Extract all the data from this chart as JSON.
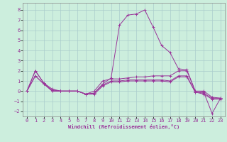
{
  "title": "",
  "xlabel": "Windchill (Refroidissement éolien,°C)",
  "ylabel": "",
  "background_color": "#cceedd",
  "grid_color": "#aacccc",
  "line_color": "#993399",
  "xlim": [
    -0.5,
    23.5
  ],
  "ylim": [
    -2.5,
    8.7
  ],
  "yticks": [
    -2,
    -1,
    0,
    1,
    2,
    3,
    4,
    5,
    6,
    7,
    8
  ],
  "xticks": [
    0,
    1,
    2,
    3,
    4,
    5,
    6,
    7,
    8,
    9,
    10,
    11,
    12,
    13,
    14,
    15,
    16,
    17,
    18,
    19,
    20,
    21,
    22,
    23
  ],
  "lines": [
    {
      "x": [
        0,
        1,
        2,
        3,
        4,
        5,
        6,
        7,
        8,
        9,
        10,
        11,
        12,
        13,
        14,
        15,
        16,
        17,
        18,
        19,
        20,
        21,
        22,
        23
      ],
      "y": [
        0.0,
        2.0,
        0.8,
        0.0,
        0.0,
        0.0,
        0.0,
        -0.3,
        -0.2,
        0.7,
        1.3,
        6.5,
        7.5,
        7.6,
        8.0,
        6.3,
        4.5,
        3.8,
        2.2,
        2.1,
        0.0,
        -0.1,
        -2.2,
        -0.7
      ]
    },
    {
      "x": [
        0,
        1,
        2,
        3,
        4,
        5,
        6,
        7,
        8,
        9,
        10,
        11,
        12,
        13,
        14,
        15,
        16,
        17,
        18,
        19,
        20,
        21,
        22,
        23
      ],
      "y": [
        0.0,
        2.0,
        0.8,
        0.2,
        0.0,
        0.0,
        0.0,
        -0.3,
        0.0,
        1.0,
        1.2,
        1.2,
        1.3,
        1.4,
        1.4,
        1.5,
        1.5,
        1.5,
        2.0,
        2.0,
        0.0,
        0.0,
        -0.6,
        -0.7
      ]
    },
    {
      "x": [
        0,
        1,
        2,
        3,
        4,
        5,
        6,
        7,
        8,
        9,
        10,
        11,
        12,
        13,
        14,
        15,
        16,
        17,
        18,
        19,
        20,
        21,
        22,
        23
      ],
      "y": [
        0.0,
        1.5,
        0.7,
        0.1,
        0.0,
        0.0,
        0.0,
        -0.3,
        -0.2,
        0.6,
        1.0,
        1.0,
        1.1,
        1.1,
        1.1,
        1.1,
        1.1,
        1.0,
        1.5,
        1.5,
        -0.1,
        -0.2,
        -0.7,
        -0.7
      ]
    },
    {
      "x": [
        0,
        1,
        2,
        3,
        4,
        5,
        6,
        7,
        8,
        9,
        10,
        11,
        12,
        13,
        14,
        15,
        16,
        17,
        18,
        19,
        20,
        21,
        22,
        23
      ],
      "y": [
        0.0,
        1.5,
        0.7,
        0.0,
        0.0,
        0.0,
        0.0,
        -0.3,
        -0.3,
        0.5,
        0.9,
        0.9,
        1.0,
        1.0,
        1.0,
        1.0,
        1.0,
        0.9,
        1.4,
        1.4,
        -0.1,
        -0.3,
        -0.8,
        -0.8
      ]
    }
  ],
  "tick_fontsize": 5,
  "xlabel_fontsize": 5,
  "linewidth": 0.7,
  "markersize": 2.5
}
